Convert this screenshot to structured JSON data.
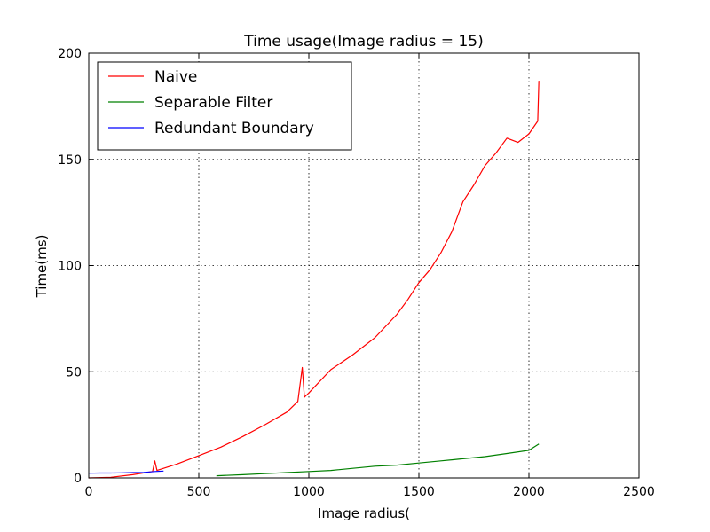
{
  "chart_data": {
    "type": "line",
    "title": "Time usage(Image radius = 15)",
    "xlabel": "Image radius(",
    "ylabel": "Time(ms)",
    "xlim": [
      0,
      2500
    ],
    "ylim": [
      0,
      200
    ],
    "x_ticks": [
      0,
      500,
      1000,
      1500,
      2000,
      2500
    ],
    "x_tick_labels": [
      "0",
      "500",
      "1000",
      "1500",
      "2000",
      "2500"
    ],
    "y_ticks": [
      0,
      50,
      100,
      150,
      200
    ],
    "y_tick_labels": [
      "0",
      "50",
      "100",
      "150",
      "200"
    ],
    "grid": true,
    "legend_position": "top-left",
    "series": [
      {
        "name": "Naive",
        "color": "#ff0000",
        "x": [
          0,
          100,
          200,
          290,
          300,
          310,
          400,
          500,
          600,
          700,
          800,
          900,
          950,
          970,
          980,
          1000,
          1100,
          1200,
          1300,
          1400,
          1450,
          1500,
          1550,
          1600,
          1650,
          1700,
          1750,
          1800,
          1850,
          1900,
          1950,
          2000,
          2040,
          2045
        ],
        "y": [
          0,
          0.3,
          1.5,
          3,
          8,
          3.5,
          6.5,
          10.5,
          14.5,
          19.5,
          25,
          31,
          36,
          52,
          38,
          40,
          51,
          58,
          66,
          77,
          84,
          92,
          98,
          106,
          116,
          130,
          138,
          147,
          153,
          160,
          158,
          162,
          168,
          187
        ]
      },
      {
        "name": "Separable Filter",
        "color": "#008000",
        "x": [
          580,
          700,
          800,
          900,
          1000,
          1100,
          1200,
          1300,
          1400,
          1500,
          1600,
          1700,
          1800,
          1900,
          2000,
          2045
        ],
        "y": [
          1,
          1.5,
          2,
          2.5,
          3,
          3.5,
          4.5,
          5.5,
          6,
          7,
          8,
          9,
          10,
          11.5,
          13,
          16
        ]
      },
      {
        "name": "Redundant Boundary",
        "color": "#0000ff",
        "x": [
          0,
          50,
          100,
          150,
          200,
          250,
          300,
          340
        ],
        "y": [
          2.2,
          2.3,
          2.3,
          2.4,
          2.5,
          2.6,
          3,
          3.2
        ]
      }
    ]
  }
}
